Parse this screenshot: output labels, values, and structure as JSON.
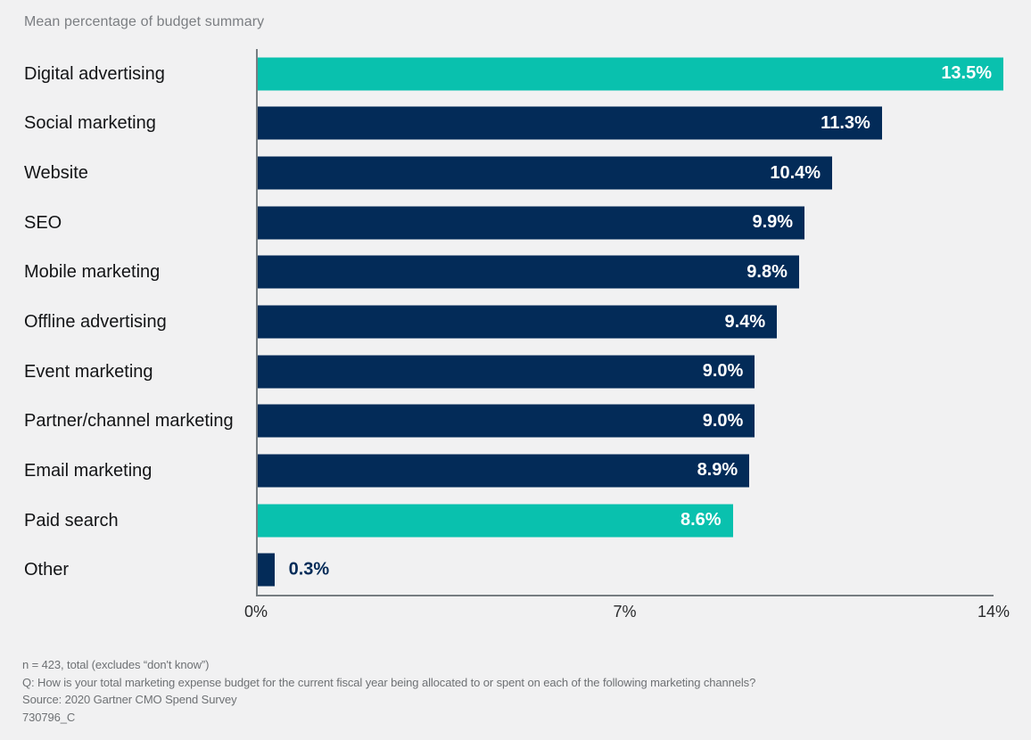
{
  "page": {
    "background": "#f1f1f2"
  },
  "chart_data": {
    "type": "bar",
    "orientation": "horizontal",
    "title": "Mean percentage of budget summary",
    "categories": [
      "Digital advertising",
      "Social marketing",
      "Website",
      "SEO",
      "Mobile marketing",
      "Offline advertising",
      "Event marketing",
      "Partner/channel marketing",
      "Email marketing",
      "Paid search",
      "Other"
    ],
    "values": [
      13.5,
      11.3,
      10.4,
      9.9,
      9.8,
      9.4,
      9.0,
      9.0,
      8.9,
      8.6,
      0.3
    ],
    "value_labels": [
      "13.5%",
      "11.3%",
      "10.4%",
      "9.9%",
      "9.8%",
      "9.4%",
      "9.0%",
      "9.0%",
      "8.9%",
      "8.6%",
      "0.3%"
    ],
    "bar_colors": [
      "#09c1ae",
      "#032b58",
      "#032b58",
      "#032b58",
      "#032b58",
      "#032b58",
      "#032b58",
      "#032b58",
      "#032b58",
      "#09c1ae",
      "#032b58"
    ],
    "colors": {
      "highlight_teal": "#09c1ae",
      "default_navy": "#032b58",
      "axis_gray": "#767d81"
    },
    "xlabel": "",
    "ylabel": "",
    "xlim": [
      0,
      14
    ],
    "x_ticks": [
      "0%",
      "7%",
      "14%"
    ],
    "grid": "off",
    "legend": "none",
    "value_label_position": "inside-end (outside-end when bar too small)"
  },
  "footnotes": [
    "n = 423, total (excludes “don't know”)",
    "Q: How is your total marketing expense budget for the current fiscal year being allocated to or spent on each of the following marketing channels?",
    "Source: 2020 Gartner CMO Spend Survey",
    "730796_C"
  ]
}
